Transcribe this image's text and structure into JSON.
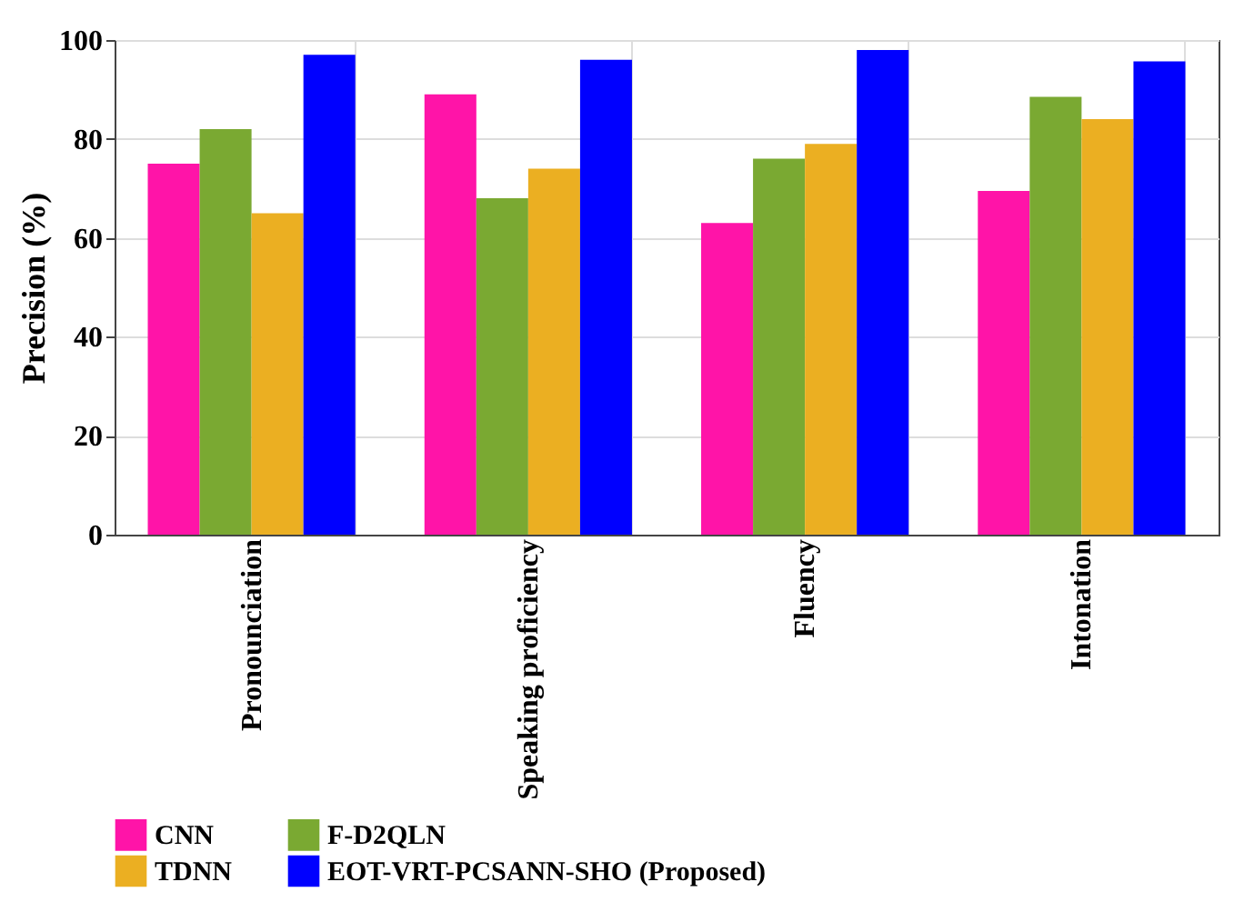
{
  "chart_data": {
    "type": "bar",
    "ylabel": "Precision (%)",
    "categories": [
      "Pronounciation",
      "Speaking proficiency",
      "Fluency",
      "Intonation"
    ],
    "series": [
      {
        "name": "CNN",
        "color": "#ff14a8",
        "values": [
          75,
          89,
          63,
          69.5
        ]
      },
      {
        "name": "F-D2QLN",
        "color": "#7aa932",
        "values": [
          82,
          68,
          76,
          88.5
        ]
      },
      {
        "name": "TDNN",
        "color": "#ebaf22",
        "values": [
          65,
          74,
          79,
          84
        ]
      },
      {
        "name": "EOT-VRT-PCSANN-SHO (Proposed)",
        "color": "#0000ff",
        "values": [
          97,
          96,
          98,
          95.7
        ]
      }
    ],
    "ylim": [
      0,
      100
    ],
    "yticks": [
      0,
      20,
      40,
      60,
      80,
      100
    ],
    "grid": true,
    "legend": "bottom"
  }
}
